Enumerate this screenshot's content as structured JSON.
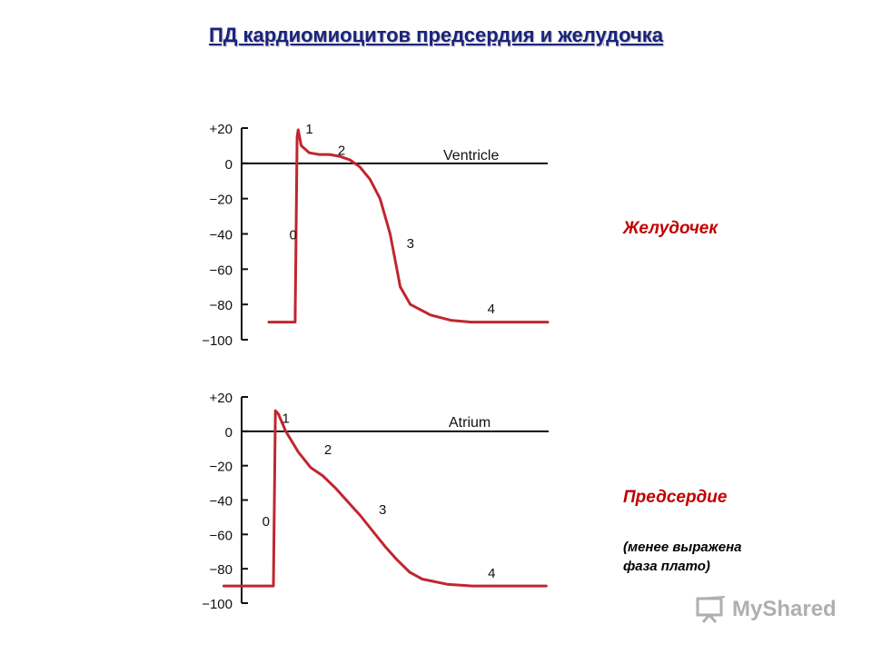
{
  "title": "ПД кардиомиоцитов предсердия и желудочка",
  "watermark": "MyShared",
  "labels": {
    "ventricle_ru": "Желудочек",
    "atrium_ru": "Предсердие",
    "atrium_note": "(менее выражена\nфаза плато)"
  },
  "colors": {
    "title": "#1a237e",
    "curve": "#c0262e",
    "label": "#c00000"
  },
  "chart_data": [
    {
      "type": "line",
      "name": "Ventricle",
      "title": "Ventricle",
      "y_ticks": [
        "+20",
        "0",
        "−20",
        "−40",
        "−60",
        "−80",
        "−100"
      ],
      "y_tick_values": [
        20,
        0,
        -20,
        -40,
        -60,
        -80,
        -100
      ],
      "ylim": [
        -100,
        20
      ],
      "reference_line": 0,
      "phases": [
        {
          "label": "0",
          "x": 0.12,
          "y": -40
        },
        {
          "label": "1",
          "x": 0.2,
          "y": 20
        },
        {
          "label": "2",
          "x": 0.36,
          "y": 8
        },
        {
          "label": "3",
          "x": 0.7,
          "y": -45
        },
        {
          "label": "4",
          "x": 1.1,
          "y": -82
        }
      ],
      "x": [
        0,
        0.13,
        0.14,
        0.145,
        0.16,
        0.2,
        0.25,
        0.3,
        0.35,
        0.4,
        0.45,
        0.5,
        0.55,
        0.6,
        0.63,
        0.65,
        0.7,
        0.8,
        0.9,
        1.0,
        1.1,
        1.2,
        1.38
      ],
      "y": [
        -90,
        -90,
        15,
        19,
        10,
        6,
        5,
        5,
        4,
        2,
        -2,
        -9,
        -20,
        -40,
        -58,
        -70,
        -80,
        -86,
        -89,
        -90,
        -90,
        -90,
        -90
      ]
    },
    {
      "type": "line",
      "name": "Atrium",
      "title": "Atrium",
      "y_ticks": [
        "+20",
        "0",
        "−20",
        "−40",
        "−60",
        "−80",
        "−100"
      ],
      "y_tick_values": [
        20,
        0,
        -20,
        -40,
        -60,
        -80,
        -100
      ],
      "ylim": [
        -100,
        20
      ],
      "reference_line": 0,
      "phases": [
        {
          "label": "0",
          "x": -0.03,
          "y": -52
        },
        {
          "label": "1",
          "x": 0.05,
          "y": 8
        },
        {
          "label": "2",
          "x": 0.22,
          "y": -10
        },
        {
          "label": "3",
          "x": 0.44,
          "y": -45
        },
        {
          "label": "4",
          "x": 0.88,
          "y": -82
        }
      ],
      "x": [
        -0.2,
        0,
        0.008,
        0.02,
        0.05,
        0.1,
        0.15,
        0.2,
        0.25,
        0.3,
        0.35,
        0.4,
        0.45,
        0.5,
        0.55,
        0.6,
        0.7,
        0.8,
        0.9,
        1.0,
        1.1
      ],
      "y": [
        -90,
        -90,
        12,
        10,
        0,
        -12,
        -21,
        -26,
        -33,
        -41,
        -49,
        -58,
        -67,
        -75,
        -82,
        -86,
        -89,
        -90,
        -90,
        -90,
        -90
      ]
    }
  ]
}
